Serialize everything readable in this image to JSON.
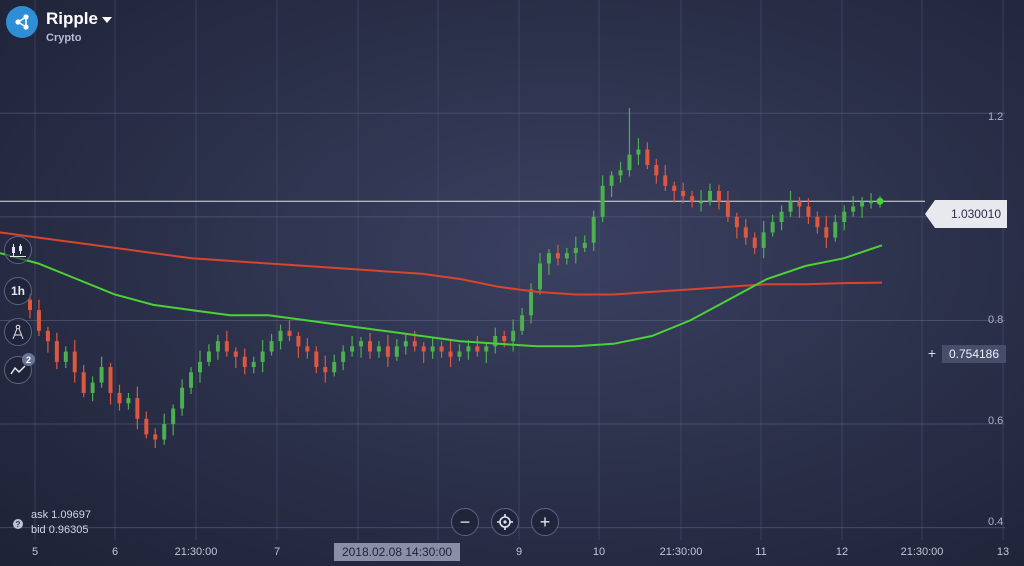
{
  "asset": {
    "name": "Ripple",
    "category": "Crypto",
    "icon": "ripple-logo-icon"
  },
  "toolbar": {
    "chart_type_icon": "candlestick-chart-icon",
    "timeframe": "1h",
    "drawing_icon": "compass-drawing-icon",
    "indicators_icon": "indicators-icon",
    "indicators_count": "2"
  },
  "quote": {
    "current_price": "1.030010",
    "cursor_price": "0.754186",
    "ask": "ask 1.09697",
    "bid": "bid 0.96305"
  },
  "zoom": {
    "zoom_out_icon": "minus-icon",
    "reset_icon": "target-icon",
    "zoom_in_icon": "plus-icon"
  },
  "cursor_date": "2018.02.08 14:30:00",
  "x_axis_labels": [
    "5",
    "6",
    "21:30:00",
    "7",
    "9",
    "10",
    "21:30:00",
    "11",
    "12",
    "21:30:00",
    "13"
  ],
  "y_axis_labels": [
    "1.2",
    "0.8",
    "0.6",
    "0.4"
  ],
  "colors": {
    "up": "#4caf50",
    "down": "#e0573f",
    "ma_fast": "#4cd137",
    "ma_slow": "#d9442e",
    "background": "#2a2f48"
  },
  "chart_data": {
    "type": "candlestick",
    "ylim": [
      0.38,
      1.38
    ],
    "y_ticks": [
      1.2,
      0.8,
      0.6,
      0.4
    ],
    "close_series": [
      0.82,
      0.78,
      0.76,
      0.72,
      0.74,
      0.7,
      0.66,
      0.68,
      0.71,
      0.66,
      0.64,
      0.65,
      0.61,
      0.58,
      0.57,
      0.6,
      0.63,
      0.67,
      0.7,
      0.72,
      0.74,
      0.76,
      0.74,
      0.73,
      0.71,
      0.72,
      0.74,
      0.76,
      0.78,
      0.77,
      0.75,
      0.74,
      0.71,
      0.7,
      0.72,
      0.74,
      0.75,
      0.76,
      0.74,
      0.75,
      0.73,
      0.75,
      0.76,
      0.75,
      0.74,
      0.75,
      0.74,
      0.73,
      0.74,
      0.75,
      0.74,
      0.75,
      0.77,
      0.76,
      0.78,
      0.81,
      0.86,
      0.91,
      0.93,
      0.92,
      0.93,
      0.94,
      0.95,
      1.0,
      1.06,
      1.08,
      1.09,
      1.12,
      1.13,
      1.1,
      1.08,
      1.06,
      1.05,
      1.04,
      1.03,
      1.03,
      1.05,
      1.03,
      1.0,
      0.98,
      0.96,
      0.94,
      0.97,
      0.99,
      1.01,
      1.03,
      1.02,
      1.0,
      0.98,
      0.96,
      0.99,
      1.01,
      1.02,
      1.03,
      1.03,
      1.03001
    ],
    "series": [
      {
        "name": "MA fast",
        "values": [
          0.93,
          0.91,
          0.88,
          0.85,
          0.83,
          0.82,
          0.81,
          0.81,
          0.8,
          0.79,
          0.78,
          0.77,
          0.76,
          0.755,
          0.75,
          0.75,
          0.755,
          0.77,
          0.8,
          0.84,
          0.88,
          0.905,
          0.92,
          0.945
        ]
      },
      {
        "name": "MA slow",
        "values": [
          0.97,
          0.96,
          0.95,
          0.94,
          0.93,
          0.92,
          0.915,
          0.91,
          0.905,
          0.9,
          0.895,
          0.89,
          0.88,
          0.865,
          0.855,
          0.85,
          0.85,
          0.855,
          0.86,
          0.865,
          0.87,
          0.87,
          0.872,
          0.873
        ]
      }
    ]
  }
}
